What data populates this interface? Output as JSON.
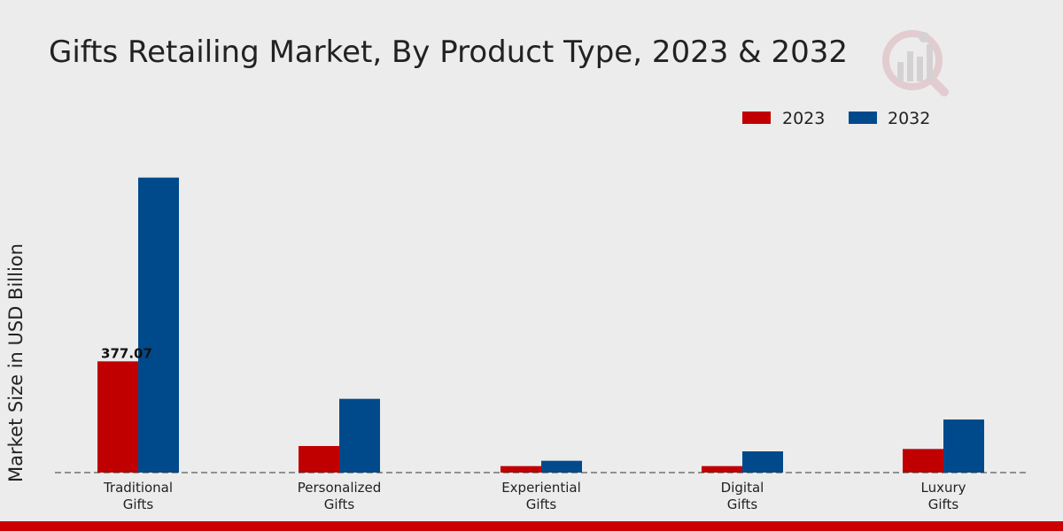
{
  "chart_data": {
    "type": "bar",
    "title": "Gifts Retailing Market, By Product Type, 2023 & 2032",
    "xlabel": "",
    "ylabel": "Market Size in USD Billion",
    "categories": [
      [
        "Traditional",
        "Gifts"
      ],
      [
        "Personalized",
        "Gifts"
      ],
      [
        "Experiential",
        "Gifts"
      ],
      [
        "Digital",
        "Gifts"
      ],
      [
        "Luxury",
        "Gifts"
      ]
    ],
    "series": [
      {
        "name": "2023",
        "color": "#c00000",
        "values": [
          377.07,
          90,
          22,
          22,
          80
        ]
      },
      {
        "name": "2032",
        "color": "#004a8c",
        "values": [
          1000,
          250,
          40,
          72,
          180
        ]
      }
    ],
    "data_labels": [
      {
        "series": 0,
        "category": 0,
        "text": "377.07"
      }
    ],
    "ylim": [
      0,
      1200
    ],
    "grid": false,
    "legend_position": "top-right",
    "baseline_style": "dashed"
  },
  "colors": {
    "background": "#ececec",
    "bottom_bar": "#cc0000",
    "logo": "#d9c8ca"
  },
  "logo": {
    "icon": "analytics-logo-icon"
  }
}
